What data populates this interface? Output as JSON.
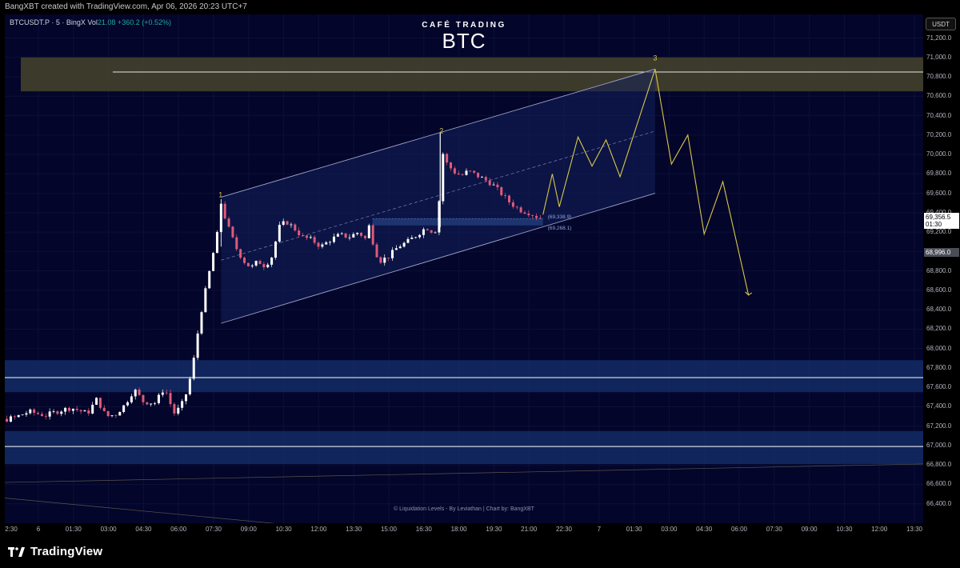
{
  "topbar": {
    "caption": "BangXBT created with TradingView.com, Apr 06, 2026 20:23 UTC+7"
  },
  "symbol": {
    "name": "BTCUSDT.P · 5 · BingX",
    "vol_label": "Vol",
    "vol_value": "21.08",
    "change": "+360.2 (+0.52%)"
  },
  "brand": {
    "subtitle": "CAFÉ TRADING",
    "title": "BTC"
  },
  "credit": "© Liquidation Levels - By Leviathan | Chart by: BangXBT",
  "currency": "USDT",
  "footer": {
    "logo_text": "TradingView"
  },
  "colors": {
    "background": "#03052a",
    "up": "#ffffff",
    "down": "#e05a7a",
    "wave": "#d9c64a",
    "zone_blue": "#15306e",
    "zone_olive": "#47442a"
  },
  "chart_data": {
    "type": "candlestick",
    "symbol": "BTCUSDT.P",
    "timeframe": "5",
    "exchange": "BingX",
    "ylim": [
      66200,
      71500
    ],
    "y_ticks": [
      66400,
      66600,
      66800,
      67000,
      67200,
      67400,
      67600,
      67800,
      68000,
      68200,
      68400,
      68600,
      68800,
      69000,
      69200,
      69400,
      69600,
      69800,
      70000,
      70200,
      70400,
      70600,
      70800,
      71000,
      71200
    ],
    "x_ticks": [
      "2:30",
      "6",
      "01:30",
      "03:00",
      "04:30",
      "06:00",
      "07:30",
      "09:00",
      "10:30",
      "12:00",
      "13:30",
      "15:00",
      "16:30",
      "18:00",
      "19:30",
      "21:00",
      "22:30",
      "7",
      "01:30",
      "03:00",
      "04:30",
      "06:00",
      "07:30",
      "09:00",
      "10:30",
      "12:00",
      "13:30"
    ],
    "x_tick_hours": [
      -3.5,
      0,
      1.5,
      3,
      4.5,
      6,
      7.5,
      9,
      10.5,
      12,
      13.5,
      15,
      16.5,
      18,
      19.5,
      21,
      22.5,
      24,
      25.5,
      27,
      28.5,
      30,
      31.5,
      33,
      34.5,
      36,
      37.5
    ],
    "price_path": [
      [
        -3.85,
        66960
      ],
      [
        -3.75,
        67450
      ],
      [
        -3.6,
        67400
      ],
      [
        -3.3,
        67320
      ],
      [
        -2.9,
        67280
      ],
      [
        -2.5,
        67270
      ],
      [
        -2.2,
        67180
      ],
      [
        -1.7,
        67250
      ],
      [
        -1.0,
        67290
      ],
      [
        -0.4,
        67350
      ],
      [
        0.3,
        67310
      ],
      [
        0.9,
        67360
      ],
      [
        1.4,
        67390
      ],
      [
        2.1,
        67330
      ],
      [
        2.5,
        67480
      ],
      [
        2.9,
        67300
      ],
      [
        3.3,
        67320
      ],
      [
        3.7,
        67420
      ],
      [
        4.1,
        67580
      ],
      [
        4.5,
        67450
      ],
      [
        5.0,
        67440
      ],
      [
        5.4,
        67600
      ],
      [
        5.8,
        67330
      ],
      [
        6.1,
        67400
      ],
      [
        6.4,
        67580
      ],
      [
        6.7,
        67950
      ],
      [
        6.9,
        68300
      ],
      [
        7.2,
        68650
      ],
      [
        7.5,
        69000
      ],
      [
        7.7,
        69230
      ],
      [
        7.82,
        69500
      ],
      [
        7.95,
        69380
      ],
      [
        8.2,
        69200
      ],
      [
        8.5,
        69020
      ],
      [
        8.8,
        68900
      ],
      [
        9.1,
        68830
      ],
      [
        9.4,
        68900
      ],
      [
        9.7,
        68850
      ],
      [
        10.0,
        68950
      ],
      [
        10.3,
        69250
      ],
      [
        10.6,
        69310
      ],
      [
        10.9,
        69250
      ],
      [
        11.3,
        69150
      ],
      [
        11.7,
        69120
      ],
      [
        12.1,
        69050
      ],
      [
        12.5,
        69120
      ],
      [
        12.9,
        69170
      ],
      [
        13.3,
        69150
      ],
      [
        13.7,
        69200
      ],
      [
        14.0,
        69130
      ],
      [
        14.2,
        69300
      ],
      [
        14.35,
        69050
      ],
      [
        14.6,
        68900
      ],
      [
        15.0,
        68950
      ],
      [
        15.4,
        69050
      ],
      [
        15.8,
        69100
      ],
      [
        16.2,
        69170
      ],
      [
        16.6,
        69250
      ],
      [
        16.9,
        69200
      ],
      [
        17.05,
        69230
      ],
      [
        17.15,
        69500
      ],
      [
        17.25,
        70050
      ],
      [
        17.5,
        69900
      ],
      [
        17.8,
        69820
      ],
      [
        18.1,
        69780
      ],
      [
        18.4,
        69830
      ],
      [
        18.8,
        69780
      ],
      [
        19.1,
        69740
      ],
      [
        19.4,
        69700
      ],
      [
        19.8,
        69600
      ],
      [
        20.2,
        69500
      ],
      [
        20.6,
        69430
      ],
      [
        21.0,
        69400
      ],
      [
        21.4,
        69350
      ],
      [
        21.6,
        69336
      ]
    ],
    "projection_path": [
      [
        21.6,
        69380
      ],
      [
        22.0,
        69800
      ],
      [
        22.3,
        69460
      ],
      [
        23.1,
        70180
      ],
      [
        23.7,
        69880
      ],
      [
        24.3,
        70150
      ],
      [
        24.9,
        69770
      ],
      [
        26.4,
        70880
      ],
      [
        27.1,
        69900
      ],
      [
        27.8,
        70200
      ],
      [
        28.5,
        69180
      ],
      [
        29.3,
        69720
      ],
      [
        30.4,
        68550
      ]
    ],
    "wave_labels": [
      {
        "label": "1",
        "hour": 7.8,
        "price": 69560
      },
      {
        "label": "2",
        "hour": 17.25,
        "price": 70220
      },
      {
        "label": "3",
        "hour": 26.4,
        "price": 70970
      }
    ],
    "resistance_zone": {
      "top": 71000,
      "bottom": 70650,
      "line": 70850
    },
    "support_zones": [
      {
        "top": 67880,
        "bottom": 67550,
        "line": 67700
      },
      {
        "top": 67150,
        "bottom": 66810,
        "line": 66990
      }
    ],
    "channel": {
      "start": [
        7.82,
        69560,
        68260
      ],
      "end": [
        26.4,
        70880,
        69600
      ],
      "mid_dashed": true
    },
    "range_box": {
      "top": 69338.9,
      "bottom": 69268.1,
      "from_hour": 14.3,
      "to_hour": 21.6
    },
    "range_labels": [
      {
        "label": "(69,338.9)",
        "price": 69338.9
      },
      {
        "label": "(69,268.1)",
        "price": 69268.1
      }
    ],
    "last_price": {
      "price": "69,356.5",
      "countdown": "01:30",
      "value": 69356.5
    },
    "marker_price": {
      "price": "68,996.0",
      "value": 68996
    }
  }
}
